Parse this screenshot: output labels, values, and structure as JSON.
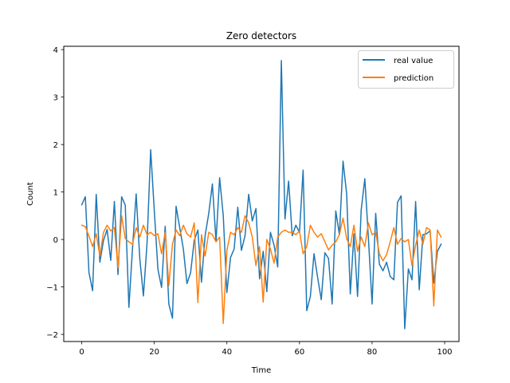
{
  "chart_data": {
    "type": "line",
    "title": "Zero detectors",
    "xlabel": "Time",
    "ylabel": "Count",
    "xlim": [
      -4.95,
      103.95
    ],
    "ylim": [
      -2.15,
      4.07
    ],
    "xticks": [
      0,
      20,
      40,
      60,
      80,
      100
    ],
    "yticks": [
      -2,
      -1,
      0,
      1,
      2,
      3,
      4
    ],
    "grid": false,
    "legend_position": "upper right",
    "series": [
      {
        "name": "real value",
        "color": "#1f77b4",
        "x": [
          0,
          1,
          2,
          3,
          4,
          5,
          6,
          7,
          8,
          9,
          10,
          11,
          12,
          13,
          14,
          15,
          16,
          17,
          18,
          19,
          20,
          21,
          22,
          23,
          24,
          25,
          26,
          27,
          28,
          29,
          30,
          31,
          32,
          33,
          34,
          35,
          36,
          37,
          38,
          39,
          40,
          41,
          42,
          43,
          44,
          45,
          46,
          47,
          48,
          49,
          50,
          51,
          52,
          53,
          54,
          55,
          56,
          57,
          58,
          59,
          60,
          61,
          62,
          63,
          64,
          65,
          66,
          67,
          68,
          69,
          70,
          71,
          72,
          73,
          74,
          75,
          76,
          77,
          78,
          79,
          80,
          81,
          82,
          83,
          84,
          85,
          86,
          87,
          88,
          89,
          90,
          91,
          92,
          93,
          94,
          95,
          96,
          97,
          98,
          99
        ],
        "y": [
          0.73,
          0.9,
          -0.7,
          -1.08,
          0.95,
          -0.48,
          -0.02,
          0.21,
          -0.44,
          0.8,
          -0.74,
          0.9,
          0.72,
          -1.43,
          -0.18,
          0.96,
          -0.4,
          -1.19,
          -0.08,
          1.89,
          0.6,
          -0.63,
          -1.01,
          0.28,
          -1.36,
          -1.66,
          0.7,
          0.25,
          -0.2,
          -0.93,
          -0.7,
          -0.02,
          0.2,
          -0.9,
          0.08,
          0.55,
          1.17,
          -0.04,
          1.3,
          0.5,
          -1.12,
          -0.38,
          -0.2,
          0.68,
          -0.23,
          0.08,
          0.95,
          0.39,
          0.65,
          -0.83,
          -0.25,
          -1.1,
          0.15,
          -0.12,
          -0.58,
          3.77,
          0.43,
          1.23,
          0.08,
          0.3,
          0.15,
          1.46,
          -1.5,
          -1.2,
          -0.3,
          -0.8,
          -1.27,
          -0.28,
          -0.4,
          -1.36,
          0.6,
          0.1,
          1.65,
          0.96,
          -1.15,
          0.12,
          -1.2,
          0.62,
          1.28,
          0.02,
          -1.36,
          0.55,
          -0.52,
          -0.66,
          -0.48,
          -0.78,
          -0.85,
          0.78,
          0.92,
          -1.88,
          -0.62,
          -0.85,
          0.8,
          -1.06,
          0.1,
          0.12,
          0.18,
          -0.92,
          -0.25,
          -0.1
        ]
      },
      {
        "name": "prediction",
        "color": "#ff7f0e",
        "x": [
          0,
          1,
          2,
          3,
          4,
          5,
          6,
          7,
          8,
          9,
          10,
          11,
          12,
          13,
          14,
          15,
          16,
          17,
          18,
          19,
          20,
          21,
          22,
          23,
          24,
          25,
          26,
          27,
          28,
          29,
          30,
          31,
          32,
          33,
          34,
          35,
          36,
          37,
          38,
          39,
          40,
          41,
          42,
          43,
          44,
          45,
          46,
          47,
          48,
          49,
          50,
          51,
          52,
          53,
          54,
          55,
          56,
          57,
          58,
          59,
          60,
          61,
          62,
          63,
          64,
          65,
          66,
          67,
          68,
          69,
          70,
          71,
          72,
          73,
          74,
          75,
          76,
          77,
          78,
          79,
          80,
          81,
          82,
          83,
          84,
          85,
          86,
          87,
          88,
          89,
          90,
          91,
          92,
          93,
          94,
          95,
          96,
          97,
          98,
          99
        ],
        "y": [
          0.3,
          0.27,
          0.07,
          -0.15,
          0.12,
          -0.35,
          0.15,
          0.3,
          0.18,
          0.25,
          -0.6,
          0.5,
          0.02,
          -0.05,
          -0.1,
          0.25,
          0.05,
          0.3,
          0.1,
          0.15,
          0.08,
          0.12,
          -0.3,
          0.15,
          -0.97,
          -0.1,
          0.2,
          0.08,
          0.3,
          0.12,
          0.05,
          0.35,
          -1.33,
          0.1,
          -0.35,
          0.15,
          0.1,
          -0.05,
          0.05,
          -1.77,
          -0.23,
          0.15,
          0.1,
          0.25,
          0.15,
          0.5,
          0.35,
          0.05,
          -0.55,
          -0.15,
          -1.32,
          0.0,
          -0.2,
          -0.5,
          0.05,
          0.15,
          0.2,
          0.15,
          0.15,
          0.1,
          0.18,
          -0.3,
          -0.15,
          0.3,
          0.15,
          0.05,
          0.12,
          -0.05,
          -0.22,
          -0.12,
          -0.05,
          0.1,
          0.45,
          0.02,
          -0.15,
          0.3,
          -0.25,
          0.05,
          -0.15,
          0.35,
          0.1,
          0.15,
          -0.3,
          -0.45,
          -0.32,
          -0.05,
          0.25,
          -0.1,
          0.02,
          -0.05,
          0.0,
          -0.55,
          -0.12,
          0.2,
          -0.1,
          0.25,
          0.2,
          -1.4,
          0.2,
          0.05
        ]
      }
    ]
  }
}
